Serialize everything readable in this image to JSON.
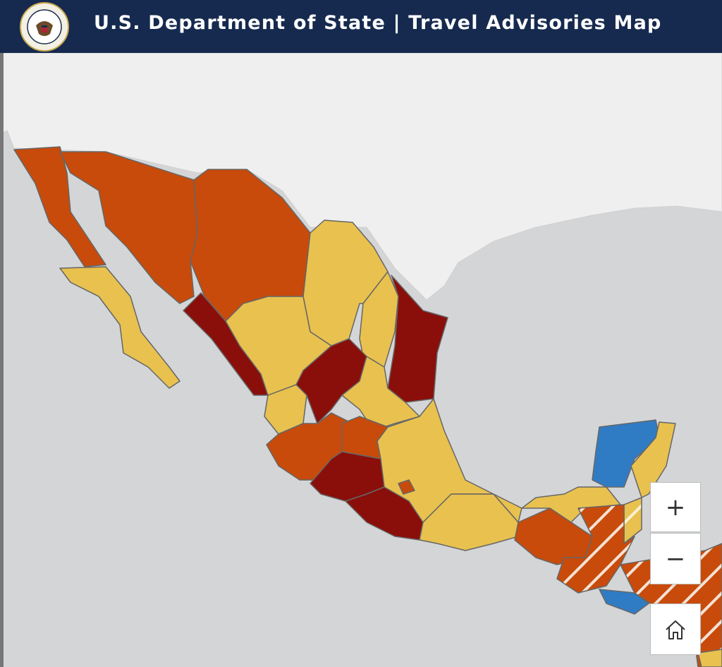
{
  "header": {
    "title": "U.S. Department of State | Travel Advisories Map"
  },
  "controls": {
    "zoom_in": "+",
    "zoom_out": "−"
  }
}
